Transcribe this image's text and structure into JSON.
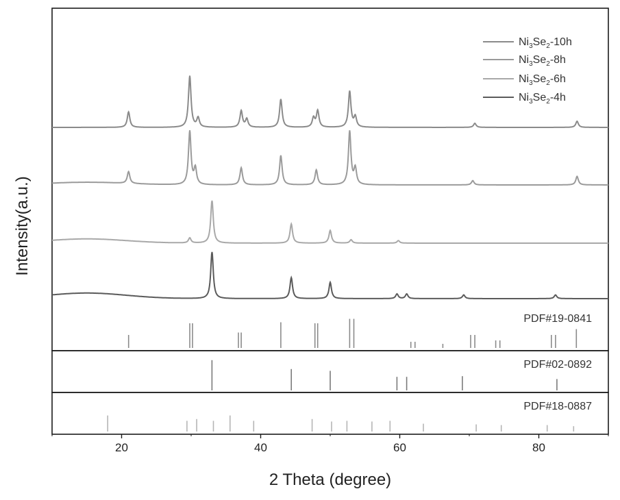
{
  "chart_data": {
    "type": "line",
    "xlabel": "2 Theta (degree)",
    "ylabel": "Intensity(a.u.)",
    "xlim": [
      10,
      90
    ],
    "xticks": [
      20,
      40,
      60,
      80
    ],
    "grid": false,
    "legend_position": "top-right",
    "series": [
      {
        "name": "Ni3Se2-10h",
        "legend_base": "Ni",
        "legend_sub1": "3",
        "legend_mid": "Se",
        "legend_sub2": "2",
        "legend_tail": "-10h",
        "color": "#8a8a8a",
        "baseline_level": 0.0,
        "peaks": [
          [
            21.0,
            0.3
          ],
          [
            29.8,
            1.0
          ],
          [
            31.0,
            0.18
          ],
          [
            37.2,
            0.32
          ],
          [
            38.0,
            0.16
          ],
          [
            42.9,
            0.55
          ],
          [
            47.6,
            0.18
          ],
          [
            48.2,
            0.32
          ],
          [
            52.8,
            0.7
          ],
          [
            53.6,
            0.2
          ],
          [
            70.8,
            0.08
          ],
          [
            85.5,
            0.12
          ]
        ]
      },
      {
        "name": "Ni3Se2-8h",
        "legend_base": "Ni",
        "legend_sub1": "3",
        "legend_mid": "Se",
        "legend_sub2": "2",
        "legend_tail": "-8h",
        "color": "#9a9a9a",
        "baseline_level": 0.05,
        "peaks": [
          [
            21.0,
            0.22
          ],
          [
            29.8,
            1.0
          ],
          [
            30.6,
            0.3
          ],
          [
            37.2,
            0.32
          ],
          [
            42.9,
            0.55
          ],
          [
            48.0,
            0.28
          ],
          [
            52.8,
            1.0
          ],
          [
            53.6,
            0.3
          ],
          [
            70.5,
            0.08
          ],
          [
            85.5,
            0.16
          ]
        ]
      },
      {
        "name": "Ni3Se2-6h",
        "legend_base": "Ni",
        "legend_sub1": "3",
        "legend_mid": "Se",
        "legend_sub2": "2",
        "legend_tail": "-6h",
        "color": "#a8a8a8",
        "baseline_level": 0.1,
        "peaks": [
          [
            29.8,
            0.12
          ],
          [
            33.0,
            1.0
          ],
          [
            44.4,
            0.45
          ],
          [
            50.0,
            0.3
          ],
          [
            53.0,
            0.08
          ],
          [
            59.8,
            0.06
          ]
        ]
      },
      {
        "name": "Ni3Se2-4h",
        "legend_base": "Ni",
        "legend_sub1": "3",
        "legend_mid": "Se",
        "legend_sub2": "2",
        "legend_tail": "-4h",
        "color": "#5a5a5a",
        "baseline_level": 0.12,
        "peaks": [
          [
            33.0,
            1.0
          ],
          [
            44.4,
            0.45
          ],
          [
            50.0,
            0.35
          ],
          [
            59.6,
            0.1
          ],
          [
            61.0,
            0.1
          ],
          [
            69.2,
            0.08
          ],
          [
            82.4,
            0.08
          ]
        ]
      }
    ],
    "references": [
      {
        "label": "PDF#19-0841",
        "color": "#8a8a8a",
        "lines": [
          [
            21.0,
            0.38
          ],
          [
            29.8,
            0.72
          ],
          [
            30.2,
            0.72
          ],
          [
            36.8,
            0.45
          ],
          [
            37.2,
            0.45
          ],
          [
            42.9,
            0.75
          ],
          [
            47.8,
            0.72
          ],
          [
            48.2,
            0.72
          ],
          [
            52.8,
            0.85
          ],
          [
            53.4,
            0.85
          ],
          [
            61.6,
            0.18
          ],
          [
            62.2,
            0.18
          ],
          [
            66.2,
            0.12
          ],
          [
            70.2,
            0.38
          ],
          [
            70.8,
            0.38
          ],
          [
            73.8,
            0.22
          ],
          [
            74.4,
            0.22
          ],
          [
            81.8,
            0.38
          ],
          [
            82.4,
            0.38
          ],
          [
            85.4,
            0.55
          ]
        ]
      },
      {
        "label": "PDF#02-0892",
        "color": "#7a7a7a",
        "lines": [
          [
            33.0,
            0.85
          ],
          [
            44.4,
            0.6
          ],
          [
            50.0,
            0.55
          ],
          [
            59.6,
            0.38
          ],
          [
            61.0,
            0.38
          ],
          [
            69.0,
            0.4
          ],
          [
            82.6,
            0.32
          ]
        ]
      },
      {
        "label": "PDF#18-0887",
        "color": "#b5b5b5",
        "lines": [
          [
            18.0,
            0.45
          ],
          [
            29.4,
            0.3
          ],
          [
            30.8,
            0.35
          ],
          [
            33.2,
            0.3
          ],
          [
            35.6,
            0.45
          ],
          [
            39.0,
            0.3
          ],
          [
            47.4,
            0.35
          ],
          [
            50.2,
            0.28
          ],
          [
            52.4,
            0.3
          ],
          [
            56.0,
            0.28
          ],
          [
            58.6,
            0.3
          ],
          [
            63.4,
            0.22
          ],
          [
            71.0,
            0.2
          ],
          [
            74.6,
            0.18
          ],
          [
            81.2,
            0.18
          ],
          [
            85.0,
            0.15
          ]
        ]
      }
    ]
  }
}
